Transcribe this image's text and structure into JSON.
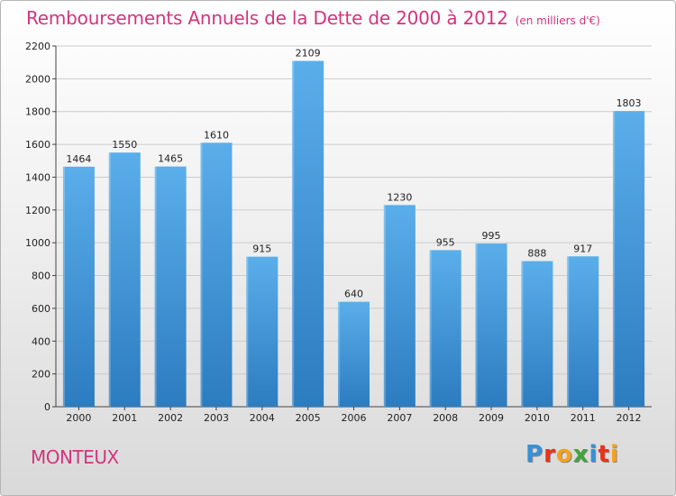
{
  "header": {
    "title": "Remboursements Annuels de la Dette de 2000 à 2012",
    "subtitle": "(en milliers d'€)"
  },
  "footer": {
    "commune": "MONTEUX",
    "brand": "Proxiti",
    "brand_letters": [
      {
        "char": "P",
        "color": "#3a8fd6"
      },
      {
        "char": "r",
        "color": "#e6331b"
      },
      {
        "char": "o",
        "color": "#f5a21b"
      },
      {
        "char": "x",
        "color": "#44a33a"
      },
      {
        "char": "i",
        "color": "#3a8fd6"
      },
      {
        "char": "t",
        "color": "#e6331b"
      },
      {
        "char": "i",
        "color": "#f5a21b"
      }
    ]
  },
  "colors": {
    "bar_top": "#5aaeea",
    "bar_bottom": "#2c7cc0",
    "title": "#d6337e",
    "grid": "#cccccc"
  },
  "chart_data": {
    "type": "bar",
    "title": "Remboursements Annuels de la Dette de 2000 à 2012",
    "subtitle": "(en milliers d'€)",
    "categories": [
      "2000",
      "2001",
      "2002",
      "2003",
      "2004",
      "2005",
      "2006",
      "2007",
      "2008",
      "2009",
      "2010",
      "2011",
      "2012"
    ],
    "values": [
      1464,
      1550,
      1465,
      1610,
      915,
      2109,
      640,
      1230,
      955,
      995,
      888,
      917,
      1803
    ],
    "ylim": [
      0,
      2200
    ],
    "yticks": [
      0,
      200,
      400,
      600,
      800,
      1000,
      1200,
      1400,
      1600,
      1800,
      2000,
      2200
    ],
    "grid": true,
    "data_labels": true,
    "xlabel": "",
    "ylabel": ""
  }
}
